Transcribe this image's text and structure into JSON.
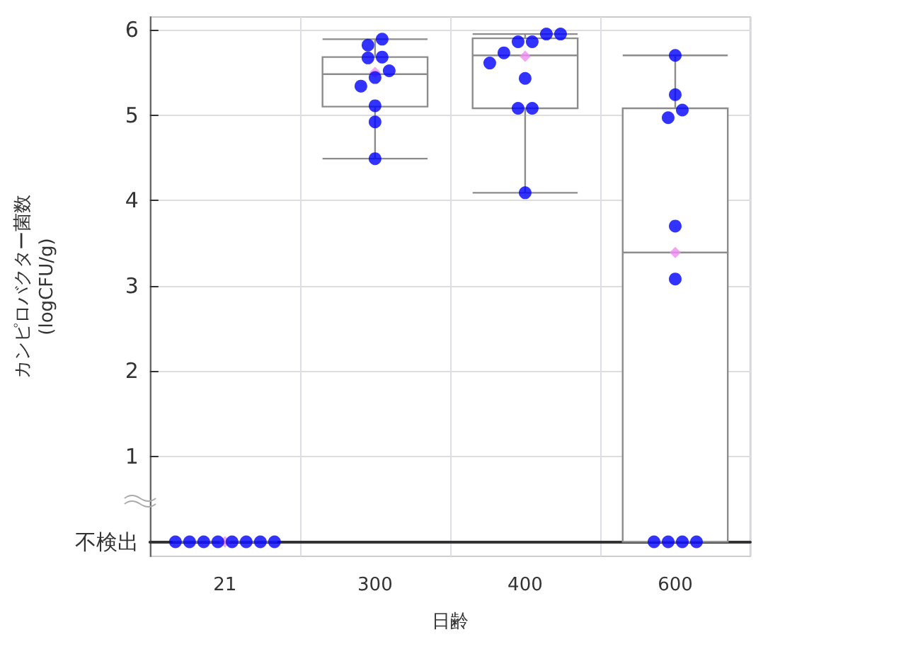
{
  "chart_data": {
    "type": "box",
    "xlabel": "日齢",
    "ylabel": "カンピロバクター菌数\n(logCFU/g)",
    "categories": [
      "21",
      "300",
      "400",
      "600"
    ],
    "series": [
      {
        "type": "box",
        "color": "#8c8c8c",
        "boxes": [
          {
            "low": 0,
            "q1": 0,
            "median": 0,
            "q3": 0,
            "high": 0,
            "mean": 0
          },
          {
            "low": 4.49,
            "q1": 5.1,
            "median": 5.48,
            "q3": 5.68,
            "high": 5.89,
            "mean": 5.5
          },
          {
            "low": 4.09,
            "q1": 5.08,
            "median": 5.7,
            "q3": 5.9,
            "high": 5.95,
            "mean": 5.69
          },
          {
            "low": 0,
            "q1": 0,
            "median": 3.39,
            "q3": 5.08,
            "high": 5.7,
            "mean": 3.39
          }
        ]
      },
      {
        "type": "scatter",
        "color": "#0000ff",
        "marker": "circle",
        "x": [
          "21",
          "21",
          "21",
          "21",
          "21",
          "21",
          "21",
          "21",
          "300",
          "300",
          "300",
          "300",
          "300",
          "300",
          "300",
          "300",
          "300",
          "300",
          "400",
          "400",
          "400",
          "400",
          "400",
          "400",
          "400",
          "400",
          "400",
          "400",
          "600",
          "600",
          "600",
          "600",
          "600",
          "600",
          "600",
          "600",
          "600",
          "600"
        ],
        "values": [
          0,
          0,
          0,
          0,
          0,
          0,
          0,
          0,
          5.89,
          5.82,
          5.67,
          5.68,
          5.52,
          5.44,
          5.34,
          5.11,
          4.92,
          4.49,
          5.95,
          5.95,
          5.86,
          5.86,
          5.73,
          5.61,
          5.43,
          5.08,
          5.08,
          4.09,
          5.7,
          5.24,
          5.06,
          4.97,
          3.7,
          3.08,
          0,
          0,
          0,
          0
        ]
      }
    ],
    "ylim": [
      -0.17,
      6.15
    ],
    "yticks": [
      {
        "value": 0,
        "label": "不検出"
      },
      1,
      2,
      3,
      4,
      5,
      6
    ],
    "grid": true
  }
}
